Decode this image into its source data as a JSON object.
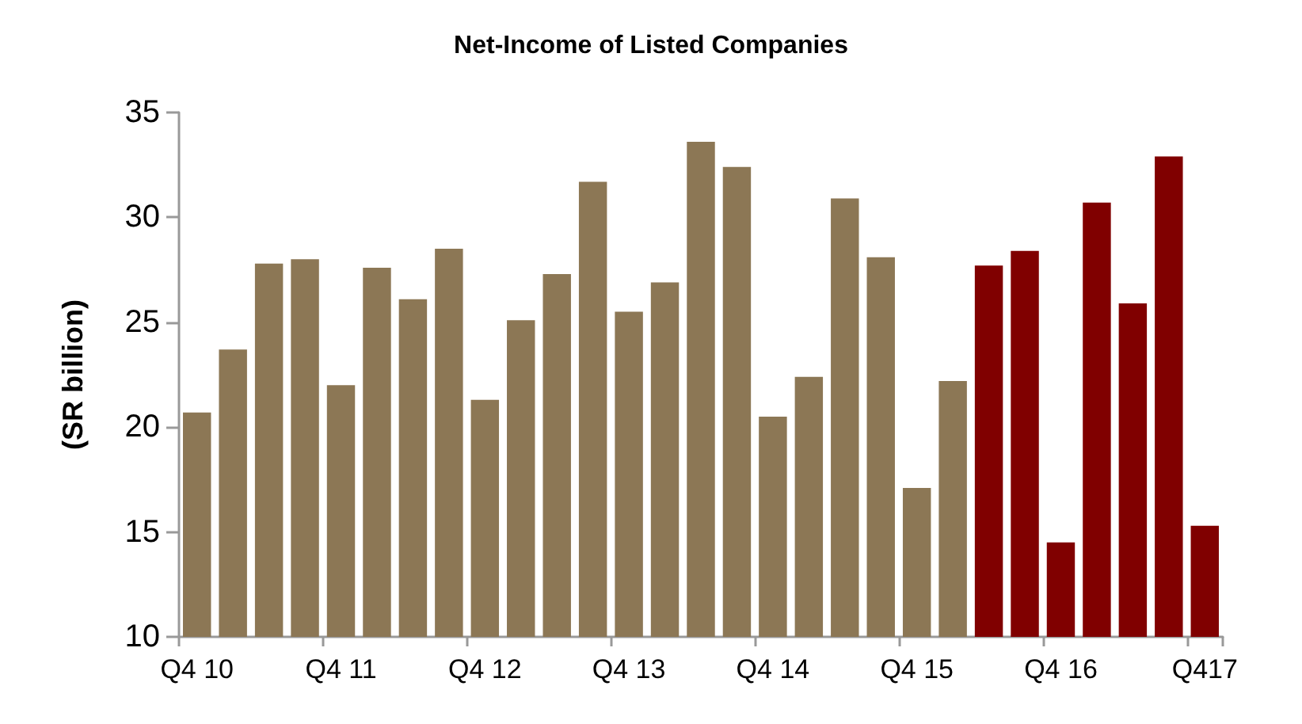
{
  "chart_data": {
    "type": "bar",
    "title": "Net-Income of Listed Companies",
    "ylabel": "(SR billion)",
    "categories": [
      "Q4 10",
      null,
      null,
      null,
      "Q4 11",
      null,
      null,
      null,
      "Q4 12",
      null,
      null,
      null,
      "Q4 13",
      null,
      null,
      null,
      "Q4 14",
      null,
      null,
      null,
      "Q4 15",
      null,
      null,
      null,
      "Q4 16",
      null,
      null,
      null,
      "Q417"
    ],
    "values": [
      20.7,
      23.7,
      27.8,
      28.0,
      22.0,
      27.6,
      26.1,
      28.5,
      21.3,
      25.1,
      27.3,
      31.7,
      25.5,
      26.9,
      33.6,
      32.4,
      20.5,
      22.4,
      30.9,
      28.1,
      17.1,
      22.2,
      27.7,
      28.4,
      14.5,
      30.7,
      25.9,
      32.9,
      15.3
    ],
    "colors": [
      "#8c7755",
      "#8c7755",
      "#8c7755",
      "#8c7755",
      "#8c7755",
      "#8c7755",
      "#8c7755",
      "#8c7755",
      "#8c7755",
      "#8c7755",
      "#8c7755",
      "#8c7755",
      "#8c7755",
      "#8c7755",
      "#8c7755",
      "#8c7755",
      "#8c7755",
      "#8c7755",
      "#8c7755",
      "#8c7755",
      "#8c7755",
      "#8c7755",
      "#800000",
      "#800000",
      "#800000",
      "#800000",
      "#800000",
      "#800000",
      "#800000"
    ],
    "ylim": [
      10,
      35
    ],
    "yticks": [
      10,
      15,
      20,
      25,
      30,
      35
    ],
    "grid": false
  }
}
